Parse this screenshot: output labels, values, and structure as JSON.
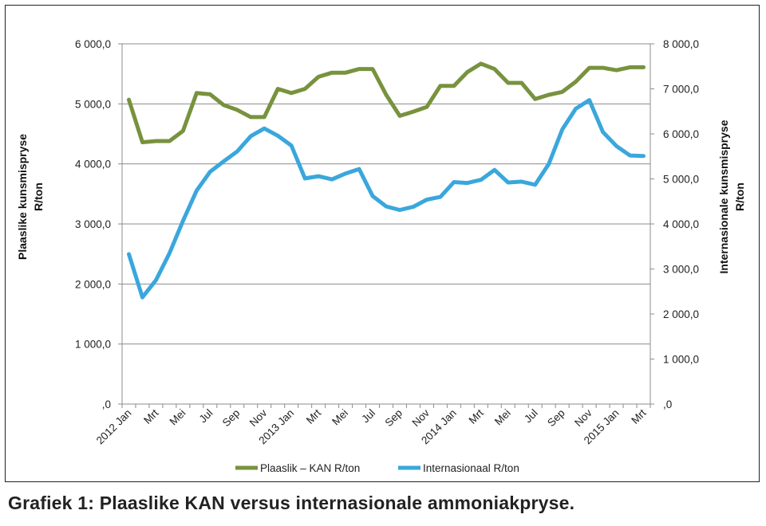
{
  "caption": "Grafiek 1: Plaaslike KAN versus internasionale ammoniakpryse.",
  "chart_data": {
    "type": "line",
    "title": "",
    "x": [
      "2012 Jan",
      "Feb",
      "Mrt",
      "Apr",
      "Mei",
      "Jun",
      "Jul",
      "Aug",
      "Sep",
      "Okt",
      "Nov",
      "Des",
      "2013 Jan",
      "Feb",
      "Mrt",
      "Apr",
      "Mei",
      "Jun",
      "Jul",
      "Aug",
      "Sep",
      "Okt",
      "Nov",
      "Des",
      "2014 Jan",
      "Feb",
      "Mrt",
      "Apr",
      "Mei",
      "Jun",
      "Jul",
      "Aug",
      "Sep",
      "Okt",
      "Nov",
      "Des",
      "2015 Jan",
      "Feb",
      "Mrt"
    ],
    "x_tick_labels": [
      "2012 Jan",
      "Mrt",
      "Mei",
      "Jul",
      "Sep",
      "Nov",
      "2013 Jan",
      "Mrt",
      "Mei",
      "Jul",
      "Sep",
      "Nov",
      "2014 Jan",
      "Mrt",
      "Mei",
      "Jul",
      "Sep",
      "Nov",
      "2015 Jan",
      "Mrt"
    ],
    "ylabel_left": "Plaaslike kunsmispryse R/ton",
    "ylabel_right": "Internasionale kunsmispryse R/ton",
    "ylim_left": [
      0,
      6000
    ],
    "ylim_right": [
      0,
      8000
    ],
    "y_ticks_left": [
      "6 000,0",
      "5 000,0",
      "4 000,0",
      "3 000,0",
      "2 000,0",
      "1 000,0",
      ",0"
    ],
    "y_ticks_right": [
      "8 000,0",
      "7 000,0",
      "6 000,0",
      "5 000,0",
      "4 000,0",
      "3 000,0",
      "2 000,0",
      "1 000,0",
      ",0"
    ],
    "grid": true,
    "legend_position": "bottom",
    "series": [
      {
        "name": "Plaaslik – KAN R/ton",
        "axis": "left",
        "color": "#78923e",
        "values": [
          5070,
          4360,
          4380,
          4380,
          4550,
          5180,
          5160,
          4980,
          4900,
          4780,
          4780,
          5250,
          5180,
          5250,
          5450,
          5520,
          5520,
          5580,
          5580,
          5150,
          4800,
          4870,
          4950,
          5300,
          5300,
          5530,
          5670,
          5580,
          5350,
          5350,
          5080,
          5150,
          5200,
          5370,
          5600,
          5600,
          5560,
          5610,
          5610
        ]
      },
      {
        "name": "Internasionaal R/ton",
        "axis": "right",
        "color": "#3aa7dc",
        "values": [
          3330,
          2370,
          2750,
          3350,
          4070,
          4740,
          5160,
          5390,
          5610,
          5950,
          6120,
          5960,
          5740,
          5010,
          5060,
          4990,
          5120,
          5220,
          4620,
          4390,
          4310,
          4380,
          4540,
          4600,
          4930,
          4910,
          4980,
          5200,
          4920,
          4940,
          4870,
          5330,
          6100,
          6560,
          6750,
          6040,
          5730,
          5520,
          5510
        ]
      }
    ]
  }
}
